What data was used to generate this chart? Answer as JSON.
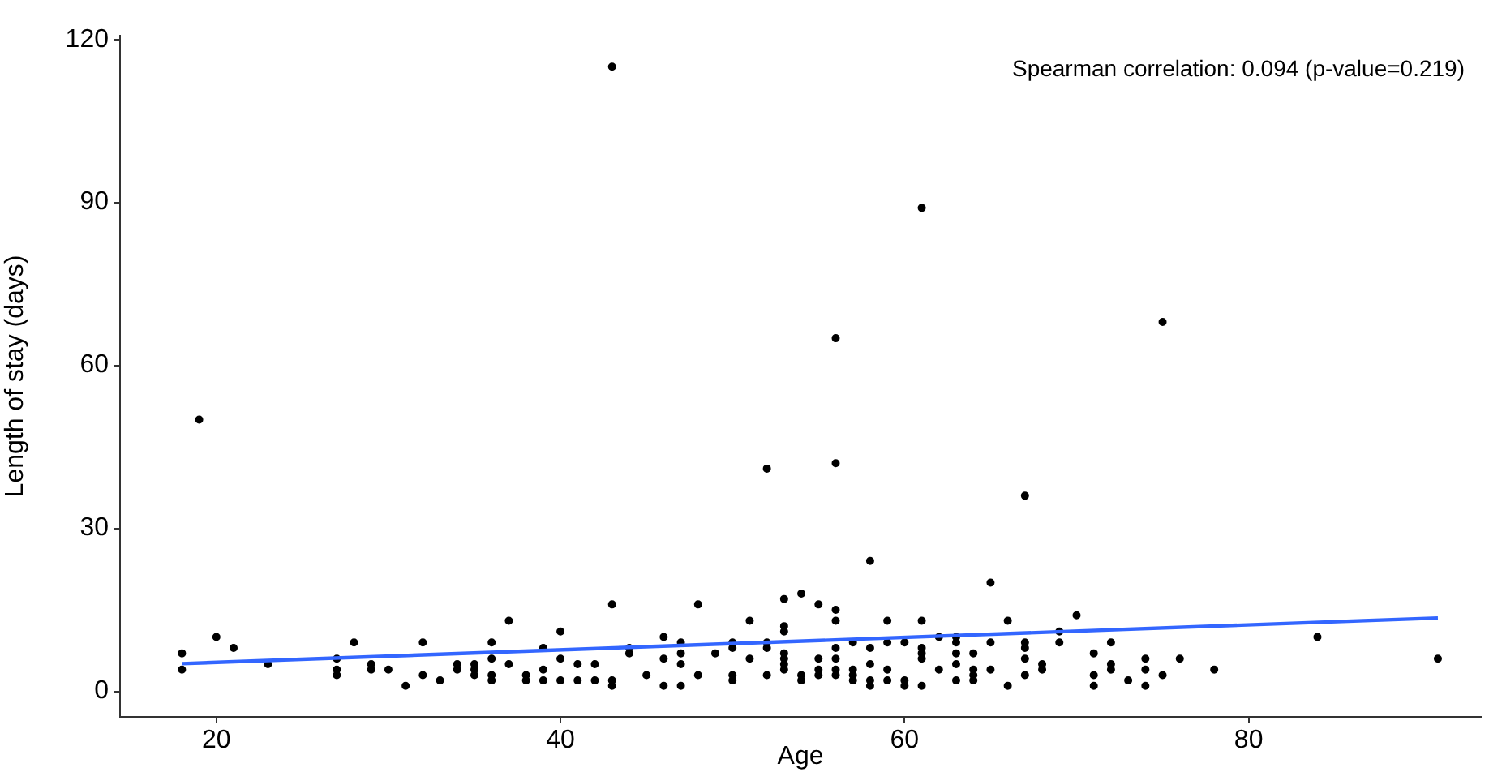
{
  "chart_data": {
    "type": "scatter",
    "xlabel": "Age",
    "ylabel": "Length of stay (days)",
    "xlim": [
      14.4,
      93.5
    ],
    "xticks": [
      20,
      40,
      60,
      80
    ],
    "ylim": [
      -4.7,
      120.7
    ],
    "yticks": [
      0,
      30,
      60,
      90,
      120
    ],
    "annotations": [
      "Spearman correlation: 0.094 (p-value=0.219)"
    ],
    "series": [
      {
        "color": "#000000",
        "marker": "circle",
        "x": [
          18,
          18,
          19,
          20,
          21,
          23,
          27,
          27,
          27,
          28,
          29,
          29,
          30,
          31,
          32,
          32,
          33,
          34,
          34,
          35,
          35,
          35,
          36,
          36,
          36,
          36,
          37,
          37,
          38,
          38,
          39,
          39,
          39,
          40,
          40,
          40,
          41,
          41,
          42,
          42,
          43,
          43,
          43,
          43,
          44,
          44,
          45,
          46,
          46,
          46,
          47,
          47,
          47,
          47,
          48,
          48,
          49,
          50,
          50,
          50,
          50,
          51,
          51,
          52,
          52,
          52,
          52,
          53,
          53,
          53,
          53,
          53,
          53,
          53,
          54,
          54,
          54,
          55,
          55,
          55,
          55,
          56,
          56,
          56,
          56,
          56,
          56,
          56,
          56,
          57,
          57,
          57,
          57,
          58,
          58,
          58,
          58,
          58,
          59,
          59,
          59,
          59,
          60,
          60,
          60,
          61,
          61,
          61,
          61,
          61,
          61,
          62,
          62,
          63,
          63,
          63,
          63,
          63,
          64,
          64,
          64,
          64,
          65,
          65,
          65,
          66,
          66,
          67,
          67,
          67,
          67,
          67,
          68,
          68,
          69,
          69,
          70,
          71,
          71,
          71,
          72,
          72,
          72,
          73,
          74,
          74,
          74,
          75,
          75,
          76,
          78,
          84,
          91
        ],
        "values": [
          7,
          4,
          50,
          10,
          8,
          5,
          6,
          4,
          3,
          9,
          5,
          4,
          4,
          1,
          9,
          3,
          2,
          5,
          4,
          5,
          4,
          3,
          9,
          6,
          3,
          2,
          13,
          5,
          3,
          2,
          8,
          4,
          2,
          11,
          6,
          2,
          5,
          2,
          5,
          2,
          115,
          16,
          2,
          1,
          8,
          7,
          3,
          10,
          6,
          1,
          9,
          7,
          5,
          1,
          16,
          3,
          7,
          9,
          8,
          3,
          2,
          13,
          6,
          41,
          9,
          8,
          3,
          17,
          12,
          11,
          7,
          6,
          5,
          4,
          18,
          3,
          2,
          16,
          6,
          4,
          3,
          65,
          42,
          15,
          13,
          8,
          6,
          4,
          3,
          9,
          4,
          3,
          2,
          24,
          8,
          5,
          2,
          1,
          13,
          9,
          4,
          2,
          9,
          2,
          1,
          89,
          13,
          8,
          7,
          6,
          1,
          10,
          4,
          10,
          9,
          7,
          5,
          2,
          7,
          4,
          3,
          2,
          20,
          9,
          4,
          13,
          1,
          36,
          9,
          8,
          6,
          3,
          5,
          4,
          11,
          9,
          14,
          7,
          3,
          1,
          9,
          5,
          4,
          2,
          6,
          4,
          1,
          68,
          3,
          6,
          4,
          10,
          6
        ]
      },
      {
        "type": "line",
        "marker": "none",
        "color": "#3366ff",
        "x": [
          18,
          91
        ],
        "values": [
          5.1,
          13.5
        ]
      }
    ]
  }
}
